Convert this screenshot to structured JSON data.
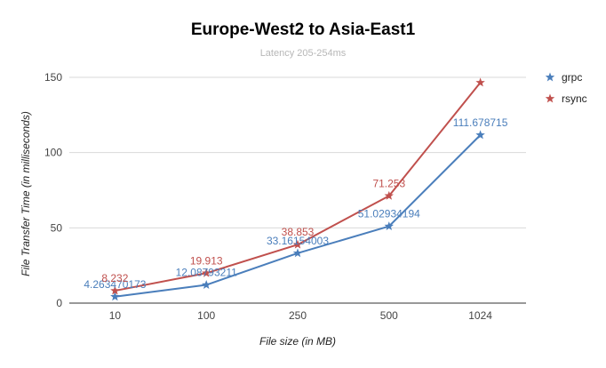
{
  "chart_data": {
    "type": "line",
    "title": "Europe-West2  to  Asia-East1",
    "subtitle": "Latency 205-254ms",
    "xlabel": "File size (in MB)",
    "ylabel": "File Transfer Time (in milliseconds)",
    "categories": [
      "10",
      "100",
      "250",
      "500",
      "1024"
    ],
    "ylim": [
      0,
      150
    ],
    "yticks": [
      "0",
      "50",
      "100",
      "150"
    ],
    "grid": true,
    "legend_position": "right",
    "series": [
      {
        "name": "grpc",
        "color": "#4a7ebb",
        "values": [
          4.263470173,
          12.08793211,
          33.16154003,
          51.02934194,
          111.678715
        ],
        "labels": [
          "4.263470173",
          "12.08793211",
          "33.16154003",
          "51.02934194",
          "111.678715"
        ]
      },
      {
        "name": "rsync",
        "color": "#c0504d",
        "values": [
          8.232,
          19.913,
          38.853,
          71.253,
          146.5
        ],
        "labels": [
          "8.232",
          "19.913",
          "38.853",
          "71.253",
          ""
        ]
      }
    ]
  }
}
